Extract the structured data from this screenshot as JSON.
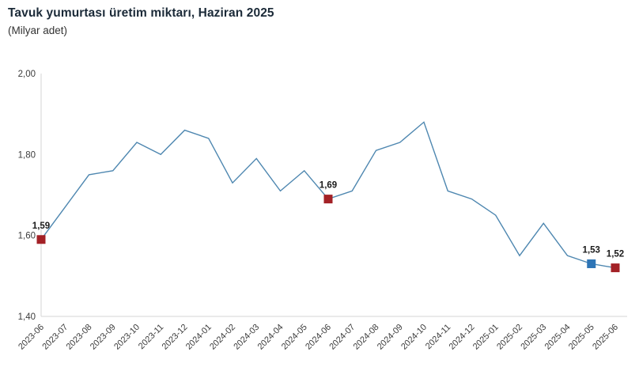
{
  "header": {
    "title": "Tavuk yumurtası üretim miktarı, Haziran 2025",
    "subtitle": "(Milyar adet)"
  },
  "colors": {
    "line": "#4e87b0",
    "marker_red": "#a32126",
    "marker_blue": "#2e75b6",
    "axis": "#d6d6d6",
    "tick_text": "#3c3c3c",
    "data_label_text": "#1a1a1a",
    "title_text": "#1b2a38"
  },
  "chart_data": {
    "type": "line",
    "title": "Tavuk yumurtası üretim miktarı, Haziran 2025",
    "subtitle": "(Milyar adet)",
    "xlabel": "",
    "ylabel": "",
    "grid": false,
    "legend": false,
    "ylim": [
      1.4,
      2.0
    ],
    "yticks": [
      {
        "value": 2.0,
        "label": "2,00"
      },
      {
        "value": 1.8,
        "label": "1,80"
      },
      {
        "value": 1.6,
        "label": "1,60"
      },
      {
        "value": 1.4,
        "label": "1,40"
      }
    ],
    "x": [
      "2023-06",
      "2023-07",
      "2023-08",
      "2023-09",
      "2023-10",
      "2023-11",
      "2023-12",
      "2024-01",
      "2024-02",
      "2024-03",
      "2024-04",
      "2024-05",
      "2024-06",
      "2024-07",
      "2024-08",
      "2024-09",
      "2024-10",
      "2024-11",
      "2024-12",
      "2025-01",
      "2025-02",
      "2025-03",
      "2025-04",
      "2025-05",
      "2025-06"
    ],
    "series": [
      {
        "name": "Tavuk yumurtası üretim miktarı (Milyar adet)",
        "values": [
          1.59,
          1.67,
          1.75,
          1.76,
          1.83,
          1.8,
          1.86,
          1.84,
          1.73,
          1.79,
          1.71,
          1.76,
          1.69,
          1.71,
          1.81,
          1.83,
          1.88,
          1.71,
          1.69,
          1.65,
          1.55,
          1.63,
          1.55,
          1.53,
          1.52
        ]
      }
    ],
    "annotated_points": [
      {
        "x": "2023-06",
        "index": 0,
        "value": 1.59,
        "label": "1,59",
        "marker": "square",
        "color": "#a32126"
      },
      {
        "x": "2024-06",
        "index": 12,
        "value": 1.69,
        "label": "1,69",
        "marker": "square",
        "color": "#a32126"
      },
      {
        "x": "2025-05",
        "index": 23,
        "value": 1.53,
        "label": "1,53",
        "marker": "square",
        "color": "#2e75b6"
      },
      {
        "x": "2025-06",
        "index": 24,
        "value": 1.52,
        "label": "1,52",
        "marker": "square",
        "color": "#a32126"
      }
    ]
  }
}
